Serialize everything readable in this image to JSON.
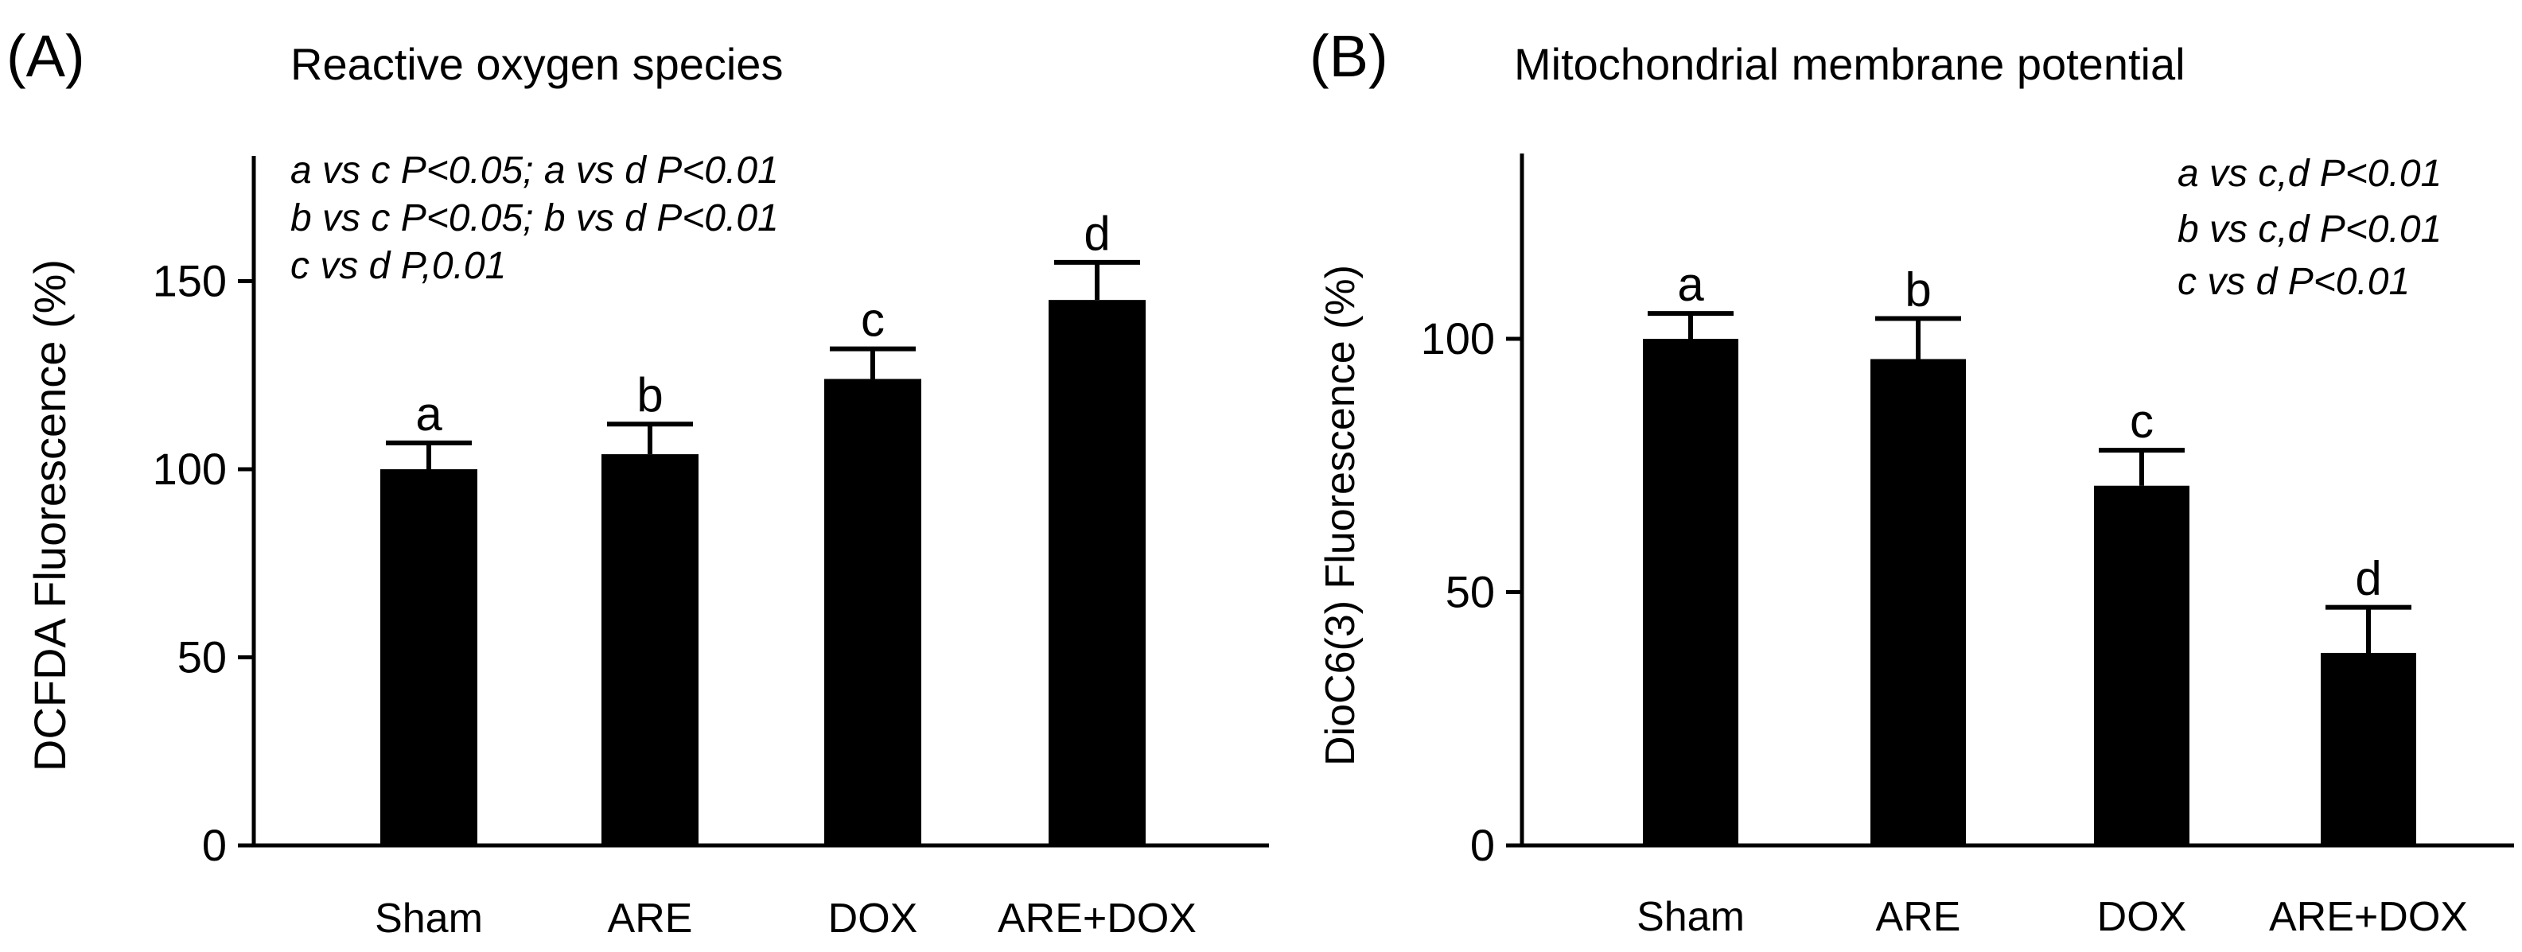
{
  "panels": [
    {
      "panel_label": "(A)",
      "annotations": [
        "a vs c P<0.05; a vs d P<0.01",
        "b vs c P<0.05; b vs d P<0.01",
        "c vs d P,0.01"
      ]
    },
    {
      "panel_label": "(B)",
      "annotations": [
        "a vs c,d P<0.01",
        "b vs c,d P<0.01",
        "c vs d P<0.01"
      ]
    }
  ],
  "chart_data": [
    {
      "type": "bar",
      "title": "Reactive oxygen species",
      "xlabel": "",
      "ylabel": "DCFDA Fluorescence (%)",
      "categories": [
        "Sham",
        "ARE",
        "DOX",
        "ARE+DOX"
      ],
      "values": [
        100,
        104,
        124,
        145
      ],
      "errors": [
        7,
        8,
        8,
        10
      ],
      "group_labels": [
        "a",
        "b",
        "c",
        "d"
      ],
      "ylim": [
        0,
        180
      ],
      "yticks": [
        0,
        50,
        100,
        150
      ],
      "ytick_labels": [
        "0",
        "50",
        "100",
        "150"
      ],
      "grid": false,
      "color": "#000000"
    },
    {
      "type": "bar",
      "title": "Mitochondrial membrane potential",
      "xlabel": "",
      "ylabel": "DioC6(3) Fluorescence (%)",
      "categories": [
        "Sham",
        "ARE",
        "DOX",
        "ARE+DOX"
      ],
      "values": [
        100,
        96,
        71,
        38
      ],
      "errors": [
        5,
        8,
        7,
        9
      ],
      "group_labels": [
        "a",
        "b",
        "c",
        "d"
      ],
      "ylim": [
        0,
        137
      ],
      "yticks": [
        0,
        50,
        100
      ],
      "ytick_labels": [
        "0",
        "50",
        "100"
      ],
      "grid": false,
      "color": "#000000"
    }
  ]
}
